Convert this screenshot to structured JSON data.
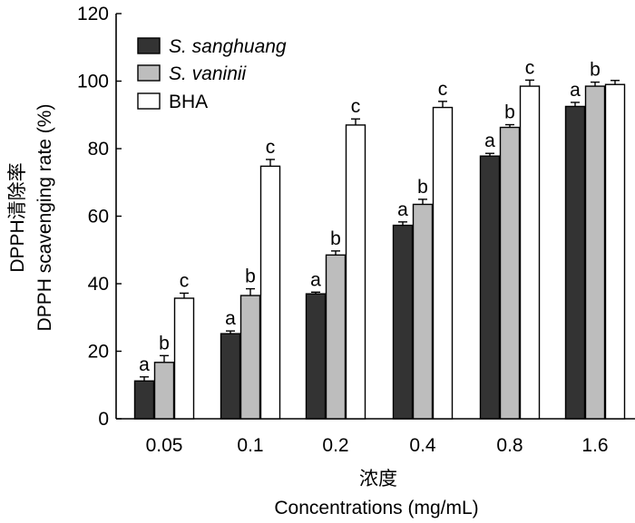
{
  "chart_data": {
    "type": "bar",
    "title": "",
    "xlabel_cn": "浓度",
    "xlabel": "Concentrations (mg/mL)",
    "ylabel_cn": "DPPH清除率",
    "ylabel": "DPPH scavenging rate (%)",
    "ylim": [
      0,
      120
    ],
    "yticks": [
      0,
      20,
      40,
      60,
      80,
      100,
      120
    ],
    "categories": [
      "0.05",
      "0.1",
      "0.2",
      "0.4",
      "0.8",
      "1.6"
    ],
    "legend_position": "top-left",
    "series": [
      {
        "name": "S. sanghuang",
        "italic": true,
        "color": "#333333",
        "values": [
          11.2,
          25.2,
          37.0,
          57.3,
          77.8,
          92.5
        ],
        "errors": [
          1.2,
          0.8,
          0.5,
          1.0,
          0.8,
          1.2
        ],
        "labels": [
          "a",
          "a",
          "a",
          "a",
          "a",
          "a"
        ]
      },
      {
        "name": "S. vaninii",
        "italic": true,
        "color": "#bdbdbd",
        "values": [
          16.7,
          36.5,
          48.5,
          63.5,
          86.3,
          98.5
        ],
        "errors": [
          2.0,
          2.0,
          1.2,
          1.5,
          0.8,
          1.2
        ],
        "labels": [
          "b",
          "b",
          "b",
          "b",
          "b",
          "b"
        ]
      },
      {
        "name": "BHA",
        "italic": false,
        "color": "#ffffff",
        "values": [
          35.7,
          74.8,
          87.0,
          92.2,
          98.5,
          99.0
        ],
        "errors": [
          1.5,
          2.0,
          1.8,
          1.8,
          1.8,
          1.2
        ],
        "labels": [
          "c",
          "c",
          "c",
          "c",
          "c",
          ""
        ]
      }
    ]
  }
}
